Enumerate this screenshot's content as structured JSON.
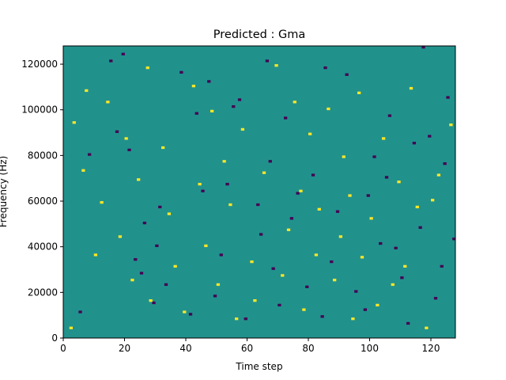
{
  "chart_data": {
    "type": "heatmap",
    "title": "Predicted : Gma",
    "xlabel": "Time step",
    "ylabel": "Frequency (Hz)",
    "xlim": [
      0,
      128
    ],
    "ylim": [
      0,
      128000
    ],
    "x_ticks": [
      0,
      20,
      40,
      60,
      80,
      100,
      120
    ],
    "x_tick_labels": [
      "0",
      "20",
      "40",
      "60",
      "80",
      "100",
      "120"
    ],
    "y_ticks": [
      0,
      20000,
      40000,
      60000,
      80000,
      100000,
      120000
    ],
    "y_tick_labels": [
      "0",
      "20000",
      "40000",
      "60000",
      "80000",
      "100000",
      "120000"
    ],
    "rows": 128,
    "cols": 128,
    "background_value": 0,
    "colormap": {
      "-1": "#440154",
      "0": "#21918c",
      "1": "#fde725"
    },
    "grid": false,
    "legend": "none",
    "cells_low": [
      [
        5,
        11
      ],
      [
        8,
        80
      ],
      [
        15,
        121
      ],
      [
        17,
        90
      ],
      [
        19,
        124
      ],
      [
        21,
        82
      ],
      [
        23,
        34
      ],
      [
        25,
        28
      ],
      [
        26,
        50
      ],
      [
        29,
        15
      ],
      [
        30,
        40
      ],
      [
        31,
        57
      ],
      [
        33,
        23
      ],
      [
        38,
        116
      ],
      [
        41,
        10
      ],
      [
        43,
        98
      ],
      [
        45,
        64
      ],
      [
        47,
        112
      ],
      [
        49,
        18
      ],
      [
        51,
        36
      ],
      [
        53,
        67
      ],
      [
        55,
        101
      ],
      [
        57,
        104
      ],
      [
        59,
        8
      ],
      [
        63,
        58
      ],
      [
        64,
        45
      ],
      [
        66,
        121
      ],
      [
        67,
        77
      ],
      [
        68,
        30
      ],
      [
        70,
        14
      ],
      [
        72,
        96
      ],
      [
        74,
        52
      ],
      [
        76,
        63
      ],
      [
        79,
        22
      ],
      [
        81,
        71
      ],
      [
        84,
        9
      ],
      [
        85,
        118
      ],
      [
        87,
        33
      ],
      [
        89,
        55
      ],
      [
        92,
        115
      ],
      [
        95,
        20
      ],
      [
        98,
        12
      ],
      [
        99,
        62
      ],
      [
        101,
        79
      ],
      [
        103,
        41
      ],
      [
        105,
        70
      ],
      [
        106,
        97
      ],
      [
        108,
        39
      ],
      [
        110,
        26
      ],
      [
        112,
        6
      ],
      [
        114,
        85
      ],
      [
        116,
        48
      ],
      [
        117,
        127
      ],
      [
        119,
        88
      ],
      [
        121,
        17
      ],
      [
        123,
        31
      ],
      [
        124,
        76
      ],
      [
        125,
        105
      ],
      [
        127,
        43
      ]
    ],
    "cells_high": [
      [
        2,
        4
      ],
      [
        3,
        94
      ],
      [
        6,
        73
      ],
      [
        7,
        108
      ],
      [
        10,
        36
      ],
      [
        12,
        59
      ],
      [
        14,
        103
      ],
      [
        18,
        44
      ],
      [
        20,
        87
      ],
      [
        22,
        25
      ],
      [
        24,
        69
      ],
      [
        27,
        118
      ],
      [
        28,
        16
      ],
      [
        32,
        83
      ],
      [
        34,
        54
      ],
      [
        36,
        31
      ],
      [
        39,
        11
      ],
      [
        42,
        110
      ],
      [
        44,
        67
      ],
      [
        46,
        40
      ],
      [
        48,
        99
      ],
      [
        50,
        23
      ],
      [
        52,
        77
      ],
      [
        54,
        58
      ],
      [
        56,
        8
      ],
      [
        58,
        91
      ],
      [
        61,
        33
      ],
      [
        62,
        16
      ],
      [
        65,
        72
      ],
      [
        69,
        119
      ],
      [
        71,
        27
      ],
      [
        73,
        47
      ],
      [
        75,
        103
      ],
      [
        77,
        64
      ],
      [
        78,
        12
      ],
      [
        80,
        89
      ],
      [
        82,
        36
      ],
      [
        83,
        56
      ],
      [
        86,
        100
      ],
      [
        88,
        25
      ],
      [
        90,
        44
      ],
      [
        91,
        79
      ],
      [
        93,
        62
      ],
      [
        94,
        8
      ],
      [
        96,
        107
      ],
      [
        97,
        35
      ],
      [
        100,
        52
      ],
      [
        102,
        14
      ],
      [
        104,
        87
      ],
      [
        107,
        23
      ],
      [
        109,
        68
      ],
      [
        111,
        31
      ],
      [
        113,
        109
      ],
      [
        115,
        57
      ],
      [
        118,
        4
      ],
      [
        120,
        60
      ],
      [
        122,
        71
      ],
      [
        126,
        93
      ]
    ]
  }
}
